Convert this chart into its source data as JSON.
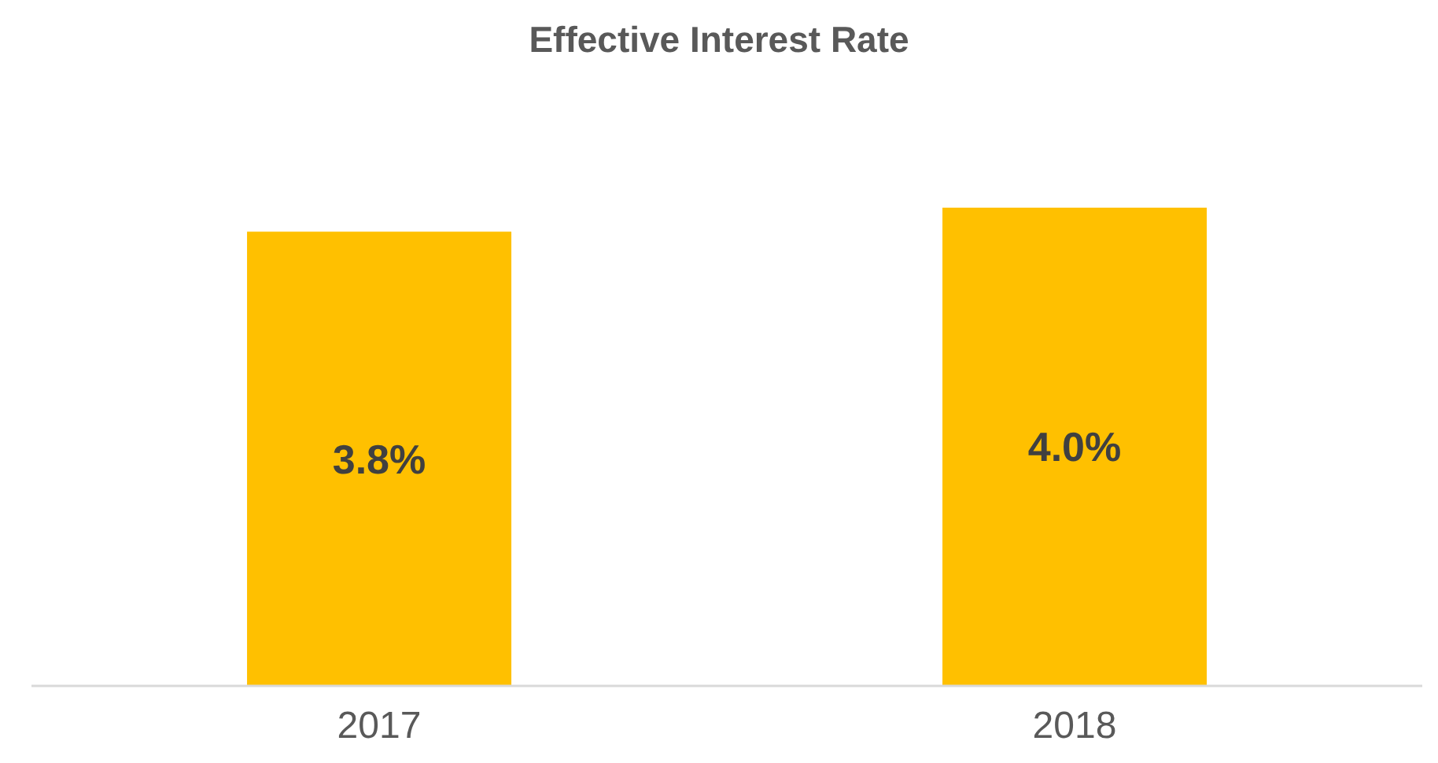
{
  "chart_data": {
    "type": "bar",
    "title": "Effective Interest Rate",
    "categories": [
      "2017",
      "2018"
    ],
    "values": [
      3.8,
      4.0
    ],
    "value_labels": [
      "3.8%",
      "4.0%"
    ],
    "color": "#ffc000"
  }
}
